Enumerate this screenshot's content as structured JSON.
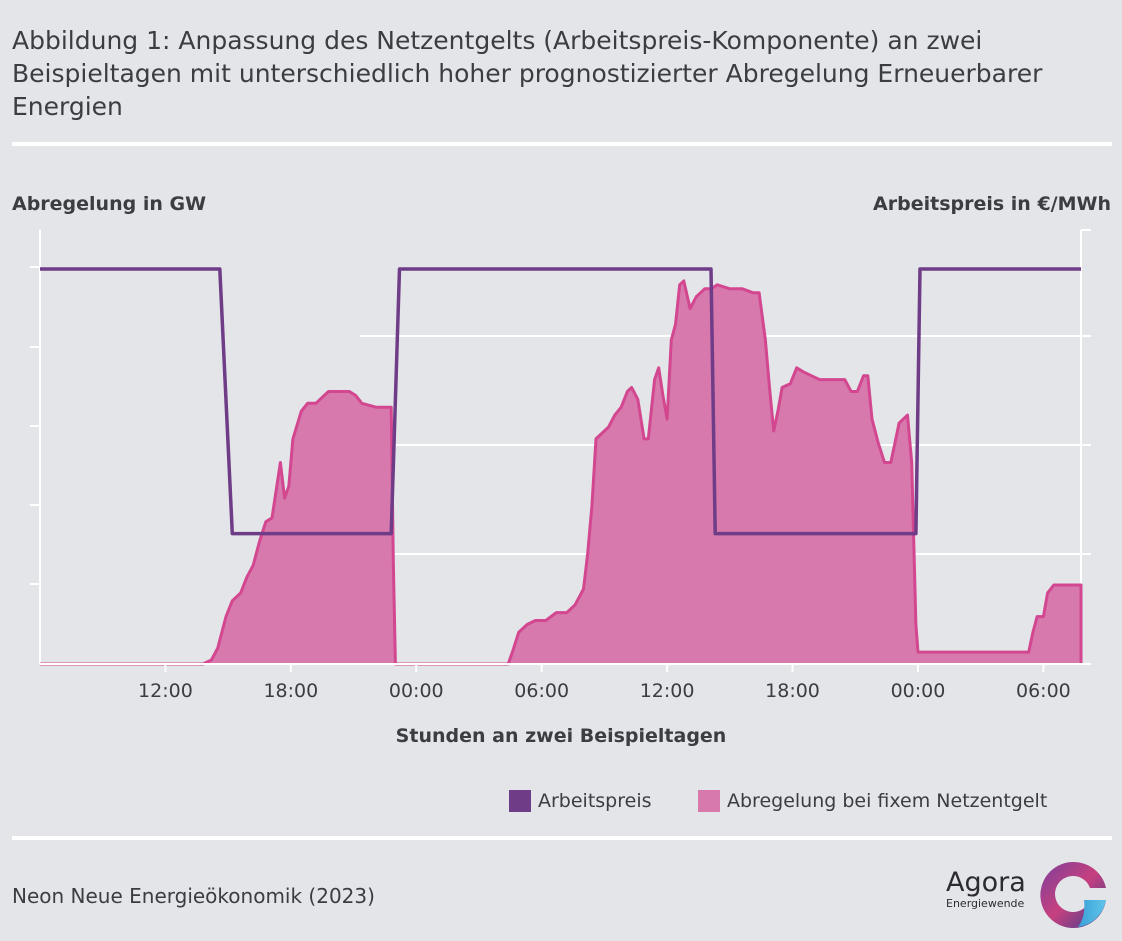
{
  "header": {
    "title_lines": [
      "Abbildung 1: Anpassung des Netzentgelts (Arbeitspreis-Komponente) an zwei",
      "Beispieltagen mit unterschiedlich hoher prognostizierter Abregelung Erneuerbarer",
      "Energien"
    ]
  },
  "footer": {
    "source": "Neon Neue Energieökonomik (2023)",
    "logo_name": "Agora",
    "logo_sub": "Energiewende"
  },
  "colors": {
    "background": "#e3e5e9",
    "arbeitspreis": "#6f3c87",
    "abregelung_fill": "#d779ad",
    "abregelung_line": "#d34790",
    "grid": "#ffffff"
  },
  "chart_data": {
    "type": "area",
    "left_axis_label": "Abregelung in GW",
    "right_axis_label": "Arbeitspreis in €/MWh",
    "xlabel": "Stunden an zwei Beispieltagen",
    "x_unit": "hours since 00:00 of day 1",
    "xlim": [
      6,
      55.8
    ],
    "x_ticks": [
      {
        "x": 12,
        "label": "12:00"
      },
      {
        "x": 18,
        "label": "18:00"
      },
      {
        "x": 24,
        "label": "00:00"
      },
      {
        "x": 30,
        "label": "06:00"
      },
      {
        "x": 36,
        "label": "12:00"
      },
      {
        "x": 42,
        "label": "18:00"
      },
      {
        "x": 48,
        "label": "00:00"
      },
      {
        "x": 54,
        "label": "06:00"
      }
    ],
    "left_ylim": [
      0,
      100
    ],
    "right_ylim": [
      0,
      100
    ],
    "tick_labels_shown": false,
    "grid": true,
    "legend_position": "bottom-right",
    "series": [
      {
        "name": "Abregelung bei fixem Netzentgelt",
        "axis": "left",
        "kind": "area",
        "points": [
          [
            6,
            0
          ],
          [
            13.8,
            0
          ],
          [
            14.2,
            1
          ],
          [
            14.5,
            4
          ],
          [
            14.9,
            12
          ],
          [
            15.2,
            16
          ],
          [
            15.6,
            18
          ],
          [
            15.9,
            22
          ],
          [
            16.2,
            25
          ],
          [
            16.5,
            31
          ],
          [
            16.8,
            36
          ],
          [
            17.1,
            37
          ],
          [
            17.3,
            44
          ],
          [
            17.5,
            51
          ],
          [
            17.7,
            42
          ],
          [
            17.9,
            45
          ],
          [
            18.1,
            57
          ],
          [
            18.5,
            64
          ],
          [
            18.8,
            66
          ],
          [
            19.2,
            66
          ],
          [
            19.4,
            67
          ],
          [
            19.8,
            69
          ],
          [
            20.3,
            69
          ],
          [
            20.8,
            69
          ],
          [
            21.1,
            68
          ],
          [
            21.4,
            66
          ],
          [
            22.1,
            65
          ],
          [
            22.8,
            65
          ],
          [
            22.9,
            26
          ],
          [
            23.0,
            0
          ],
          [
            28.4,
            0
          ],
          [
            28.6,
            3
          ],
          [
            28.9,
            8
          ],
          [
            29.3,
            10
          ],
          [
            29.7,
            11
          ],
          [
            30.2,
            11
          ],
          [
            30.7,
            13
          ],
          [
            31.2,
            13
          ],
          [
            31.6,
            15
          ],
          [
            32.0,
            19
          ],
          [
            32.2,
            28
          ],
          [
            32.4,
            40
          ],
          [
            32.6,
            57
          ],
          [
            33.2,
            60
          ],
          [
            33.5,
            63
          ],
          [
            33.8,
            65
          ],
          [
            34.1,
            69
          ],
          [
            34.3,
            70
          ],
          [
            34.6,
            67
          ],
          [
            34.9,
            57
          ],
          [
            35.1,
            57
          ],
          [
            35.4,
            72
          ],
          [
            35.6,
            75
          ],
          [
            35.8,
            68
          ],
          [
            36.0,
            62
          ],
          [
            36.2,
            82
          ],
          [
            36.4,
            86
          ],
          [
            36.6,
            96
          ],
          [
            36.8,
            97
          ],
          [
            37.1,
            90
          ],
          [
            37.4,
            93
          ],
          [
            37.8,
            95
          ],
          [
            38.1,
            95
          ],
          [
            38.4,
            96
          ],
          [
            39.0,
            95
          ],
          [
            39.6,
            95
          ],
          [
            40.1,
            94
          ],
          [
            40.4,
            94
          ],
          [
            40.7,
            82
          ],
          [
            40.9,
            70
          ],
          [
            41.1,
            59
          ],
          [
            41.3,
            64
          ],
          [
            41.5,
            70
          ],
          [
            41.9,
            71
          ],
          [
            42.2,
            75
          ],
          [
            42.5,
            74
          ],
          [
            42.9,
            73
          ],
          [
            43.3,
            72
          ],
          [
            43.9,
            72
          ],
          [
            44.5,
            72
          ],
          [
            44.8,
            69
          ],
          [
            45.1,
            69
          ],
          [
            45.4,
            73
          ],
          [
            45.6,
            73
          ],
          [
            45.8,
            62
          ],
          [
            46.1,
            56
          ],
          [
            46.4,
            51
          ],
          [
            46.7,
            51
          ],
          [
            46.9,
            56
          ],
          [
            47.1,
            61
          ],
          [
            47.5,
            63
          ],
          [
            47.7,
            51
          ],
          [
            47.9,
            10
          ],
          [
            48.0,
            3
          ],
          [
            53.3,
            3
          ],
          [
            53.5,
            8
          ],
          [
            53.7,
            12
          ],
          [
            54.0,
            12
          ],
          [
            54.2,
            18
          ],
          [
            54.5,
            20
          ],
          [
            54.8,
            20
          ],
          [
            55.8,
            20
          ],
          [
            55.8,
            0
          ]
        ]
      },
      {
        "name": "Arbeitspreis",
        "axis": "right",
        "kind": "step",
        "points": [
          [
            6,
            100
          ],
          [
            14.6,
            100
          ],
          [
            15.2,
            33
          ],
          [
            22.8,
            33
          ],
          [
            23.2,
            100
          ],
          [
            38.1,
            100
          ],
          [
            38.3,
            33
          ],
          [
            47.9,
            33
          ],
          [
            48.1,
            100
          ],
          [
            55.8,
            100
          ]
        ]
      }
    ]
  },
  "legend": {
    "items": [
      {
        "label": "Arbeitspreis",
        "color": "#6f3c87"
      },
      {
        "label": "Abregelung bei fixem Netzentgelt",
        "color": "#d779ad"
      }
    ]
  }
}
